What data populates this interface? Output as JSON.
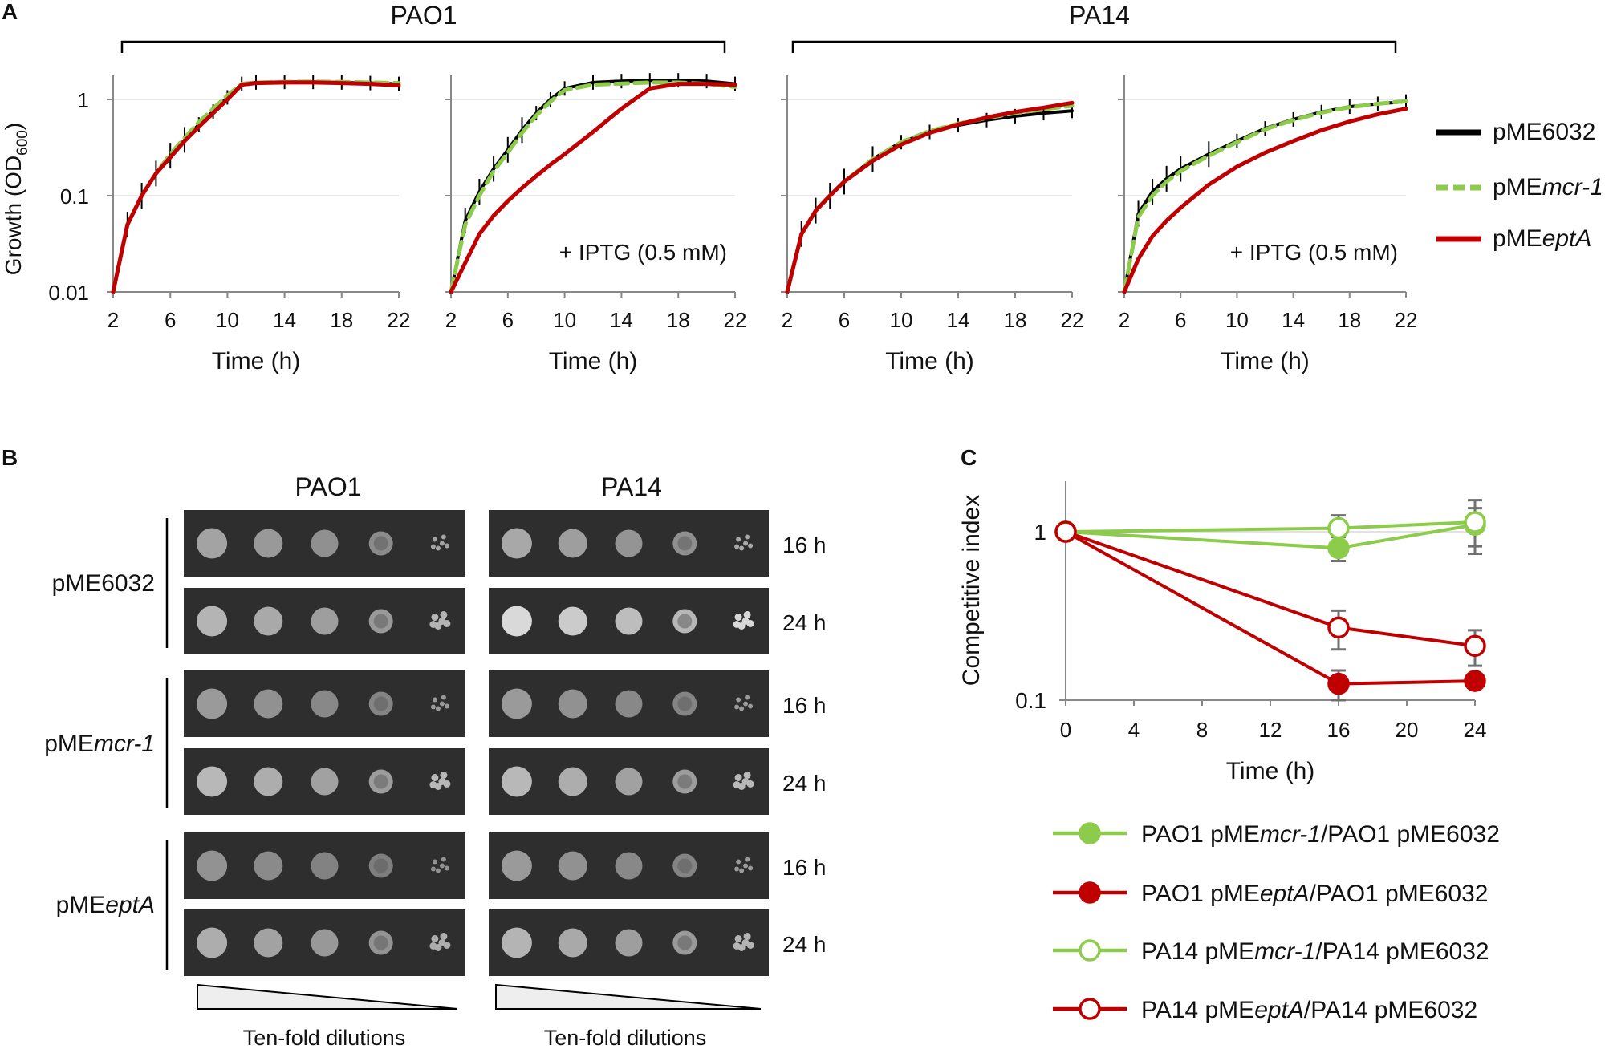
{
  "panels": {
    "a": "A",
    "b": "B",
    "c": "C"
  },
  "strains": [
    "PAO1",
    "PA14"
  ],
  "legend_a": [
    {
      "prefix": "pME6032",
      "italic": "",
      "color": "#000000",
      "dash": false
    },
    {
      "prefix": "pME",
      "italic": "mcr-1",
      "color": "#8DCB4B",
      "dash": true
    },
    {
      "prefix": "pME",
      "italic": "eptA",
      "color": "#C00000",
      "dash": false
    }
  ],
  "chart_data": [
    {
      "type": "line",
      "panel": "A",
      "group": "PAO1",
      "annotation": "",
      "xlabel": "Time (h)",
      "ylabel": "Growth (OD600)",
      "ylabel_main": "Growth (OD",
      "ylabel_sub": "600",
      "ylabel_close": ")",
      "xlim": [
        2,
        22
      ],
      "xticks": [
        2,
        6,
        10,
        14,
        18,
        22
      ],
      "ylim": [
        0.01,
        1.7
      ],
      "yscale": "log",
      "yticks": [
        0.01,
        0.1,
        1
      ],
      "ytick_labels": [
        "0.01",
        "0.1",
        "1"
      ],
      "series": [
        {
          "name": "pME6032",
          "x": [
            2,
            3,
            4,
            5,
            6,
            7,
            8,
            9,
            10,
            11,
            12,
            14,
            16,
            18,
            20,
            22
          ],
          "y": [
            0.01,
            0.05,
            0.1,
            0.17,
            0.26,
            0.38,
            0.55,
            0.75,
            1.05,
            1.45,
            1.5,
            1.52,
            1.52,
            1.5,
            1.48,
            1.45
          ]
        },
        {
          "name": "pMEmcr-1",
          "x": [
            2,
            3,
            4,
            5,
            6,
            7,
            8,
            9,
            10,
            11,
            12,
            14,
            16,
            18,
            20,
            22
          ],
          "y": [
            0.01,
            0.05,
            0.1,
            0.17,
            0.27,
            0.4,
            0.58,
            0.8,
            1.1,
            1.45,
            1.5,
            1.52,
            1.53,
            1.52,
            1.5,
            1.48
          ]
        },
        {
          "name": "pMEeptA",
          "x": [
            2,
            3,
            4,
            5,
            6,
            7,
            8,
            9,
            10,
            11,
            12,
            14,
            16,
            18,
            20,
            22
          ],
          "y": [
            0.01,
            0.05,
            0.1,
            0.17,
            0.25,
            0.37,
            0.52,
            0.72,
            1.0,
            1.42,
            1.48,
            1.5,
            1.5,
            1.48,
            1.45,
            1.4
          ]
        }
      ]
    },
    {
      "type": "line",
      "panel": "A",
      "group": "PAO1",
      "annotation": "+ IPTG (0.5 mM)",
      "xlabel": "Time (h)",
      "xlim": [
        2,
        22
      ],
      "xticks": [
        2,
        6,
        10,
        14,
        18,
        22
      ],
      "ylim": [
        0.01,
        1.7
      ],
      "yscale": "log",
      "yticks": [
        0.01,
        0.1,
        1
      ],
      "series": [
        {
          "name": "pME6032",
          "x": [
            2,
            3,
            4,
            5,
            6,
            7,
            8,
            9,
            10,
            12,
            14,
            16,
            18,
            20,
            22
          ],
          "y": [
            0.01,
            0.055,
            0.11,
            0.19,
            0.3,
            0.48,
            0.72,
            1.0,
            1.3,
            1.5,
            1.55,
            1.58,
            1.58,
            1.55,
            1.45
          ]
        },
        {
          "name": "pMEmcr-1",
          "x": [
            2,
            3,
            4,
            5,
            6,
            7,
            8,
            9,
            10,
            12,
            14,
            16,
            18,
            20,
            22
          ],
          "y": [
            0.01,
            0.05,
            0.1,
            0.18,
            0.28,
            0.45,
            0.68,
            0.95,
            1.25,
            1.42,
            1.46,
            1.5,
            1.5,
            1.45,
            1.35
          ]
        },
        {
          "name": "pMEeptA",
          "x": [
            2,
            3,
            4,
            5,
            6,
            7,
            8,
            9,
            10,
            12,
            14,
            16,
            18,
            20,
            22
          ],
          "y": [
            0.01,
            0.02,
            0.04,
            0.062,
            0.088,
            0.12,
            0.16,
            0.21,
            0.27,
            0.46,
            0.8,
            1.3,
            1.45,
            1.45,
            1.42
          ]
        }
      ]
    },
    {
      "type": "line",
      "panel": "A",
      "group": "PA14",
      "annotation": "",
      "xlabel": "Time (h)",
      "xlim": [
        2,
        22
      ],
      "xticks": [
        2,
        6,
        10,
        14,
        18,
        22
      ],
      "ylim": [
        0.01,
        1.7
      ],
      "yscale": "log",
      "yticks": [
        0.01,
        0.1,
        1
      ],
      "series": [
        {
          "name": "pME6032",
          "x": [
            2,
            3,
            4,
            5,
            6,
            8,
            10,
            12,
            14,
            16,
            18,
            20,
            22
          ],
          "y": [
            0.01,
            0.04,
            0.07,
            0.1,
            0.14,
            0.24,
            0.36,
            0.46,
            0.54,
            0.61,
            0.67,
            0.72,
            0.76
          ]
        },
        {
          "name": "pMEmcr-1",
          "x": [
            2,
            3,
            4,
            5,
            6,
            8,
            10,
            12,
            14,
            16,
            18,
            20,
            22
          ],
          "y": [
            0.01,
            0.04,
            0.07,
            0.1,
            0.14,
            0.24,
            0.36,
            0.47,
            0.56,
            0.64,
            0.72,
            0.79,
            0.86
          ]
        },
        {
          "name": "pMEeptA",
          "x": [
            2,
            3,
            4,
            5,
            6,
            8,
            10,
            12,
            14,
            16,
            18,
            20,
            22
          ],
          "y": [
            0.01,
            0.04,
            0.07,
            0.1,
            0.14,
            0.23,
            0.34,
            0.45,
            0.55,
            0.65,
            0.74,
            0.82,
            0.92
          ]
        }
      ]
    },
    {
      "type": "line",
      "panel": "A",
      "group": "PA14",
      "annotation": "+ IPTG (0.5 mM)",
      "xlabel": "Time (h)",
      "xlim": [
        2,
        22
      ],
      "xticks": [
        2,
        6,
        10,
        14,
        18,
        22
      ],
      "ylim": [
        0.01,
        1.7
      ],
      "yscale": "log",
      "yticks": [
        0.01,
        0.1,
        1
      ],
      "series": [
        {
          "name": "pME6032",
          "x": [
            2,
            3,
            4,
            5,
            6,
            8,
            10,
            12,
            14,
            16,
            18,
            20,
            22
          ],
          "y": [
            0.01,
            0.065,
            0.11,
            0.15,
            0.19,
            0.27,
            0.37,
            0.5,
            0.62,
            0.74,
            0.84,
            0.9,
            0.95
          ]
        },
        {
          "name": "pMEmcr-1",
          "x": [
            2,
            3,
            4,
            5,
            6,
            8,
            10,
            12,
            14,
            16,
            18,
            20,
            22
          ],
          "y": [
            0.01,
            0.06,
            0.1,
            0.14,
            0.18,
            0.26,
            0.36,
            0.49,
            0.61,
            0.73,
            0.83,
            0.9,
            0.96
          ]
        },
        {
          "name": "pMEeptA",
          "x": [
            2,
            3,
            4,
            5,
            6,
            8,
            10,
            12,
            14,
            16,
            18,
            20,
            22
          ],
          "y": [
            0.01,
            0.022,
            0.038,
            0.055,
            0.075,
            0.13,
            0.2,
            0.28,
            0.37,
            0.48,
            0.59,
            0.7,
            0.8
          ]
        }
      ]
    },
    {
      "type": "line",
      "panel": "C",
      "xlabel": "Time (h)",
      "ylabel": "Competitive index",
      "xlim": [
        0,
        24
      ],
      "xticks": [
        0,
        4,
        8,
        12,
        16,
        20,
        24
      ],
      "ylim": [
        0.1,
        1.4
      ],
      "yscale": "log",
      "yticks": [
        0.1,
        1
      ],
      "ytick_labels": [
        "0.1",
        "1"
      ],
      "x": [
        0,
        16,
        24
      ],
      "series": [
        {
          "name": "PAO1 pMEmcr-1/PAO1 pME6032",
          "parts": [
            "PAO1 pME",
            "mcr-1",
            "/PAO1 pME6032"
          ],
          "color": "#8DCB4B",
          "filled": true,
          "y": [
            1.0,
            0.8,
            1.1
          ],
          "err": [
            0,
            0.13,
            0.28
          ]
        },
        {
          "name": "PAO1 pMEeptA/PAO1 pME6032",
          "parts": [
            "PAO1 pME",
            "eptA",
            "/PAO1 pME6032"
          ],
          "color": "#C00000",
          "filled": true,
          "y": [
            1.0,
            0.125,
            0.13
          ],
          "err": [
            0,
            0.025,
            0.01
          ]
        },
        {
          "name": "PA14 pMEmcr-1/PA14 pME6032",
          "parts": [
            "PA14 pME",
            "mcr-1",
            "/PA14 pME6032"
          ],
          "color": "#8DCB4B",
          "filled": false,
          "y": [
            1.0,
            1.05,
            1.14
          ],
          "err": [
            0,
            0.2,
            0.4
          ]
        },
        {
          "name": "PA14 pMEeptA/PA14 pME6032",
          "parts": [
            "PA14 pME",
            "eptA",
            "/PA14 pME6032"
          ],
          "color": "#C00000",
          "filled": false,
          "y": [
            1.0,
            0.27,
            0.21
          ],
          "err": [
            0,
            0.07,
            0.05
          ]
        }
      ]
    }
  ],
  "spot_assay": {
    "columns": [
      "PAO1",
      "PA14"
    ],
    "times": [
      "16 h",
      "24 h"
    ],
    "plasmids": [
      {
        "prefix": "pME6032",
        "italic": ""
      },
      {
        "prefix": "pME",
        "italic": "mcr-1"
      },
      {
        "prefix": "pME",
        "italic": "eptA"
      }
    ],
    "dilution_label": "Ten-fold dilutions",
    "spots_per_row": 5
  },
  "colors": {
    "black": "#000000",
    "green": "#8DCB4B",
    "red": "#C00000",
    "axis": "#888888"
  }
}
